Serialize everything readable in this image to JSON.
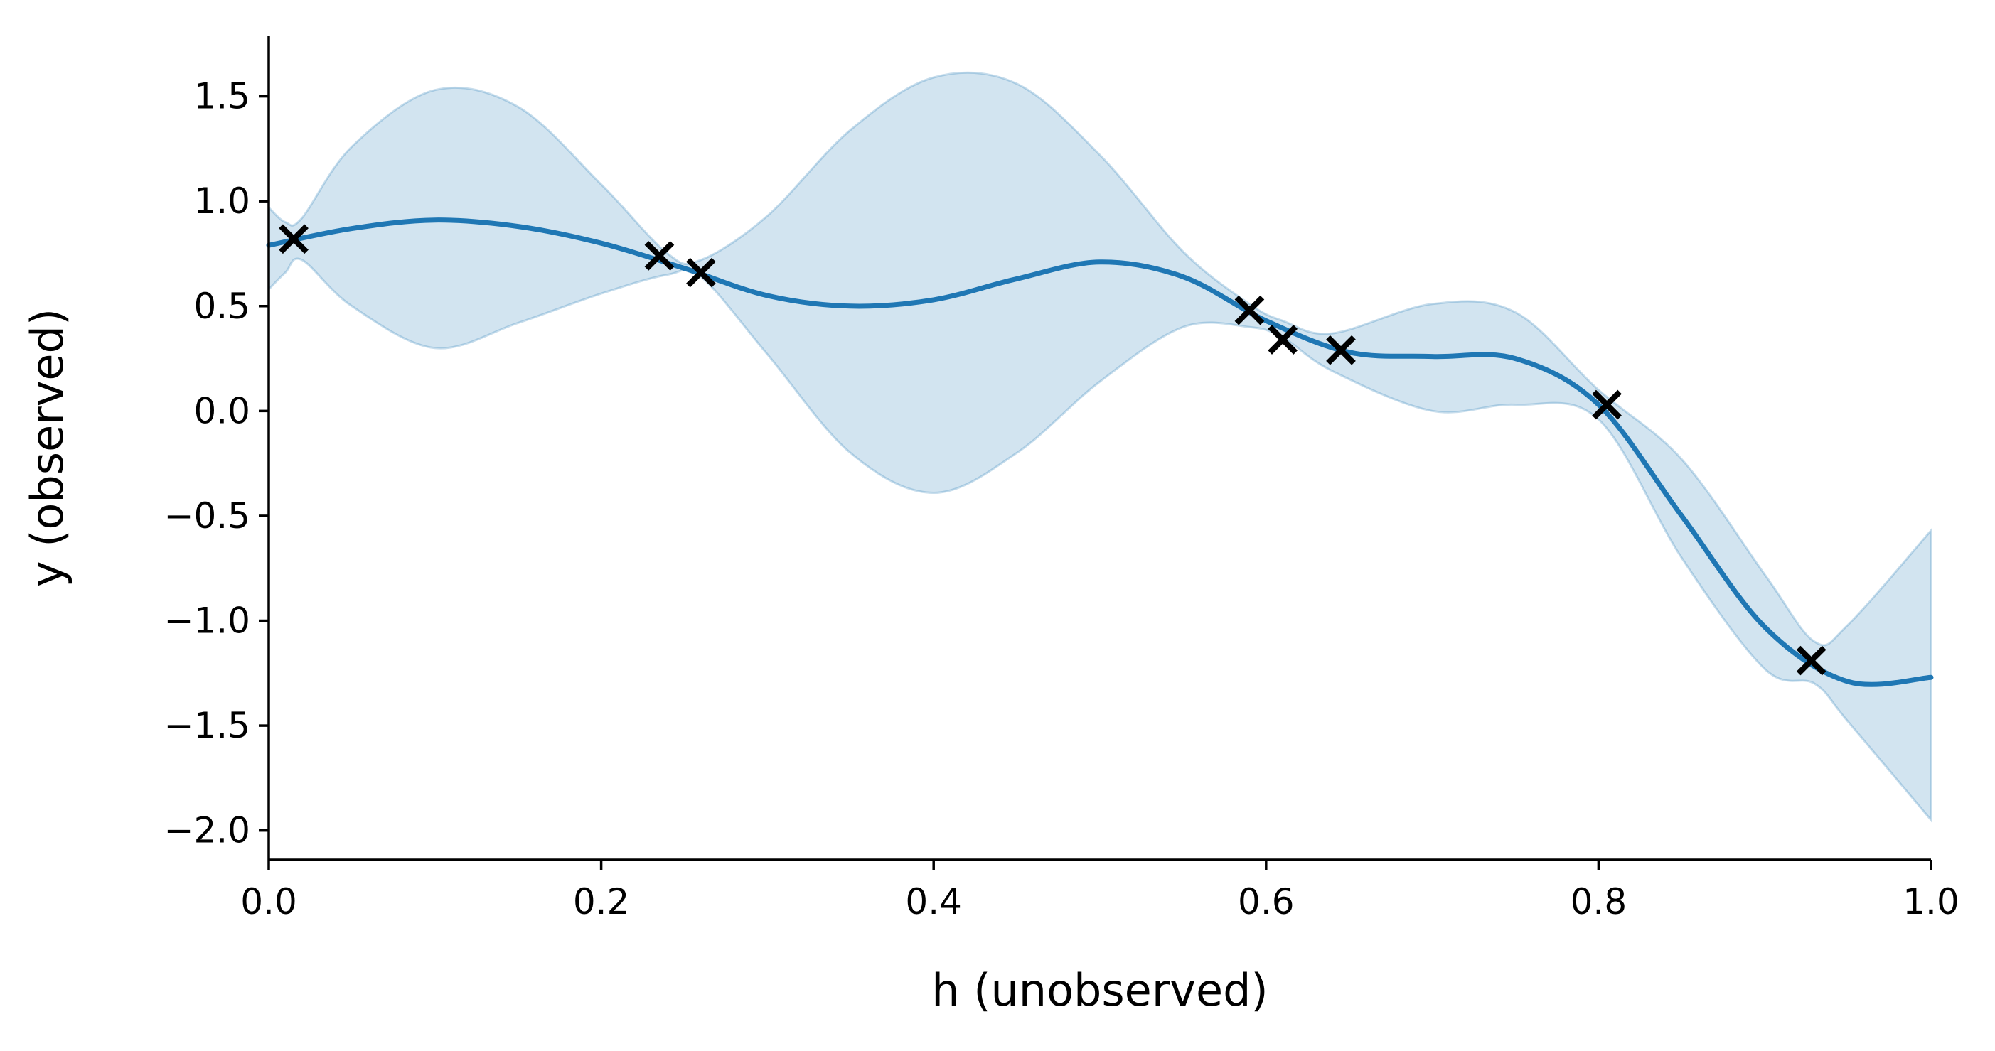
{
  "chart_data": {
    "type": "line",
    "title": "",
    "xlabel": "h (unobserved)",
    "ylabel": "y (observed)",
    "xlim": [
      0.0,
      1.0
    ],
    "ylim": [
      -2.14,
      1.79
    ],
    "grid": false,
    "legend": "none",
    "x_ticks": [
      {
        "v": 0.0,
        "label": "0.0"
      },
      {
        "v": 0.2,
        "label": "0.2"
      },
      {
        "v": 0.4,
        "label": "0.4"
      },
      {
        "v": 0.6,
        "label": "0.6"
      },
      {
        "v": 0.8,
        "label": "0.8"
      },
      {
        "v": 1.0,
        "label": "1.0"
      }
    ],
    "y_ticks": [
      {
        "v": 1.5,
        "label": "1.5"
      },
      {
        "v": 1.0,
        "label": "1.0"
      },
      {
        "v": 0.5,
        "label": "0.5"
      },
      {
        "v": 0.0,
        "label": "0.0"
      },
      {
        "v": -0.5,
        "label": "−0.5"
      },
      {
        "v": -1.0,
        "label": "−1.0"
      },
      {
        "v": -1.5,
        "label": "−1.5"
      },
      {
        "v": -2.0,
        "label": "−2.0"
      }
    ],
    "colors": {
      "mean": "#1f77b4",
      "band_fill": "#1f77b4",
      "band_opacity": 0.2,
      "points": "#000000"
    },
    "series": [
      {
        "kind": "mean",
        "x": [
          0.0,
          0.05,
          0.1,
          0.15,
          0.2,
          0.25,
          0.3,
          0.35,
          0.4,
          0.45,
          0.5,
          0.55,
          0.6,
          0.65,
          0.7,
          0.75,
          0.8,
          0.85,
          0.9,
          0.95,
          1.0
        ],
        "y": [
          0.79,
          0.87,
          0.91,
          0.88,
          0.8,
          0.68,
          0.55,
          0.5,
          0.53,
          0.63,
          0.71,
          0.64,
          0.43,
          0.28,
          0.26,
          0.25,
          0.03,
          -0.5,
          -1.03,
          -1.29,
          -1.27
        ]
      },
      {
        "kind": "band",
        "x": [
          0.0,
          0.01,
          0.02,
          0.05,
          0.1,
          0.15,
          0.2,
          0.24,
          0.26,
          0.3,
          0.35,
          0.4,
          0.45,
          0.5,
          0.55,
          0.59,
          0.61,
          0.64,
          0.7,
          0.75,
          0.8,
          0.85,
          0.9,
          0.93,
          0.95,
          1.0
        ],
        "upper": [
          0.97,
          0.9,
          0.92,
          1.26,
          1.53,
          1.45,
          1.08,
          0.75,
          0.72,
          0.93,
          1.34,
          1.59,
          1.56,
          1.22,
          0.76,
          0.51,
          0.43,
          0.37,
          0.51,
          0.47,
          0.1,
          -0.23,
          -0.78,
          -1.1,
          -1.02,
          -0.57
        ],
        "lower": [
          0.58,
          0.66,
          0.72,
          0.5,
          0.3,
          0.42,
          0.56,
          0.65,
          0.64,
          0.27,
          -0.2,
          -0.39,
          -0.2,
          0.14,
          0.4,
          0.4,
          0.35,
          0.19,
          0.0,
          0.03,
          -0.04,
          -0.7,
          -1.23,
          -1.3,
          -1.48,
          -1.95
        ]
      }
    ],
    "points": {
      "x": [
        0.015,
        0.235,
        0.26,
        0.59,
        0.61,
        0.645,
        0.805,
        0.928
      ],
      "y": [
        0.82,
        0.74,
        0.66,
        0.48,
        0.34,
        0.29,
        0.03,
        -1.19
      ]
    }
  }
}
